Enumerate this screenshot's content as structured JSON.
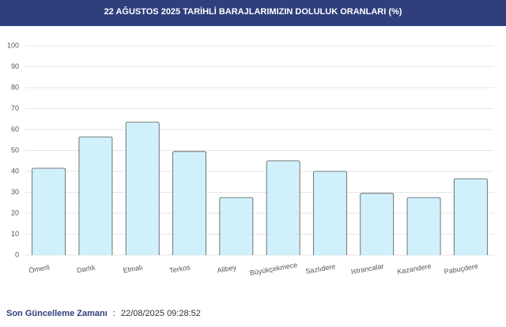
{
  "chart_data": {
    "type": "bar",
    "title": "22 AĞUSTOS 2025 TARİHLİ BARAJLARIMIZIN DOLULUK ORANLARI (%)",
    "categories": [
      "Ömerli",
      "Darlık",
      "Elmalı",
      "Terkos",
      "Alibey",
      "Büyükçekmece",
      "Sazlıdere",
      "Istrancalar",
      "Kazandere",
      "Pabuçdere"
    ],
    "values": [
      41.5,
      56.5,
      63.5,
      49.5,
      27.5,
      45,
      40,
      29.5,
      27.5,
      36.5
    ],
    "color": "#c8eefc",
    "ylim": [
      0,
      100
    ],
    "yticks": [
      0,
      10,
      20,
      30,
      40,
      50,
      60,
      70,
      80,
      90,
      100
    ],
    "grid": true
  },
  "footer": {
    "label": "Son Güncelleme Zamanı",
    "separator": ":",
    "timestamp": "22/08/2025 09:28:52"
  }
}
